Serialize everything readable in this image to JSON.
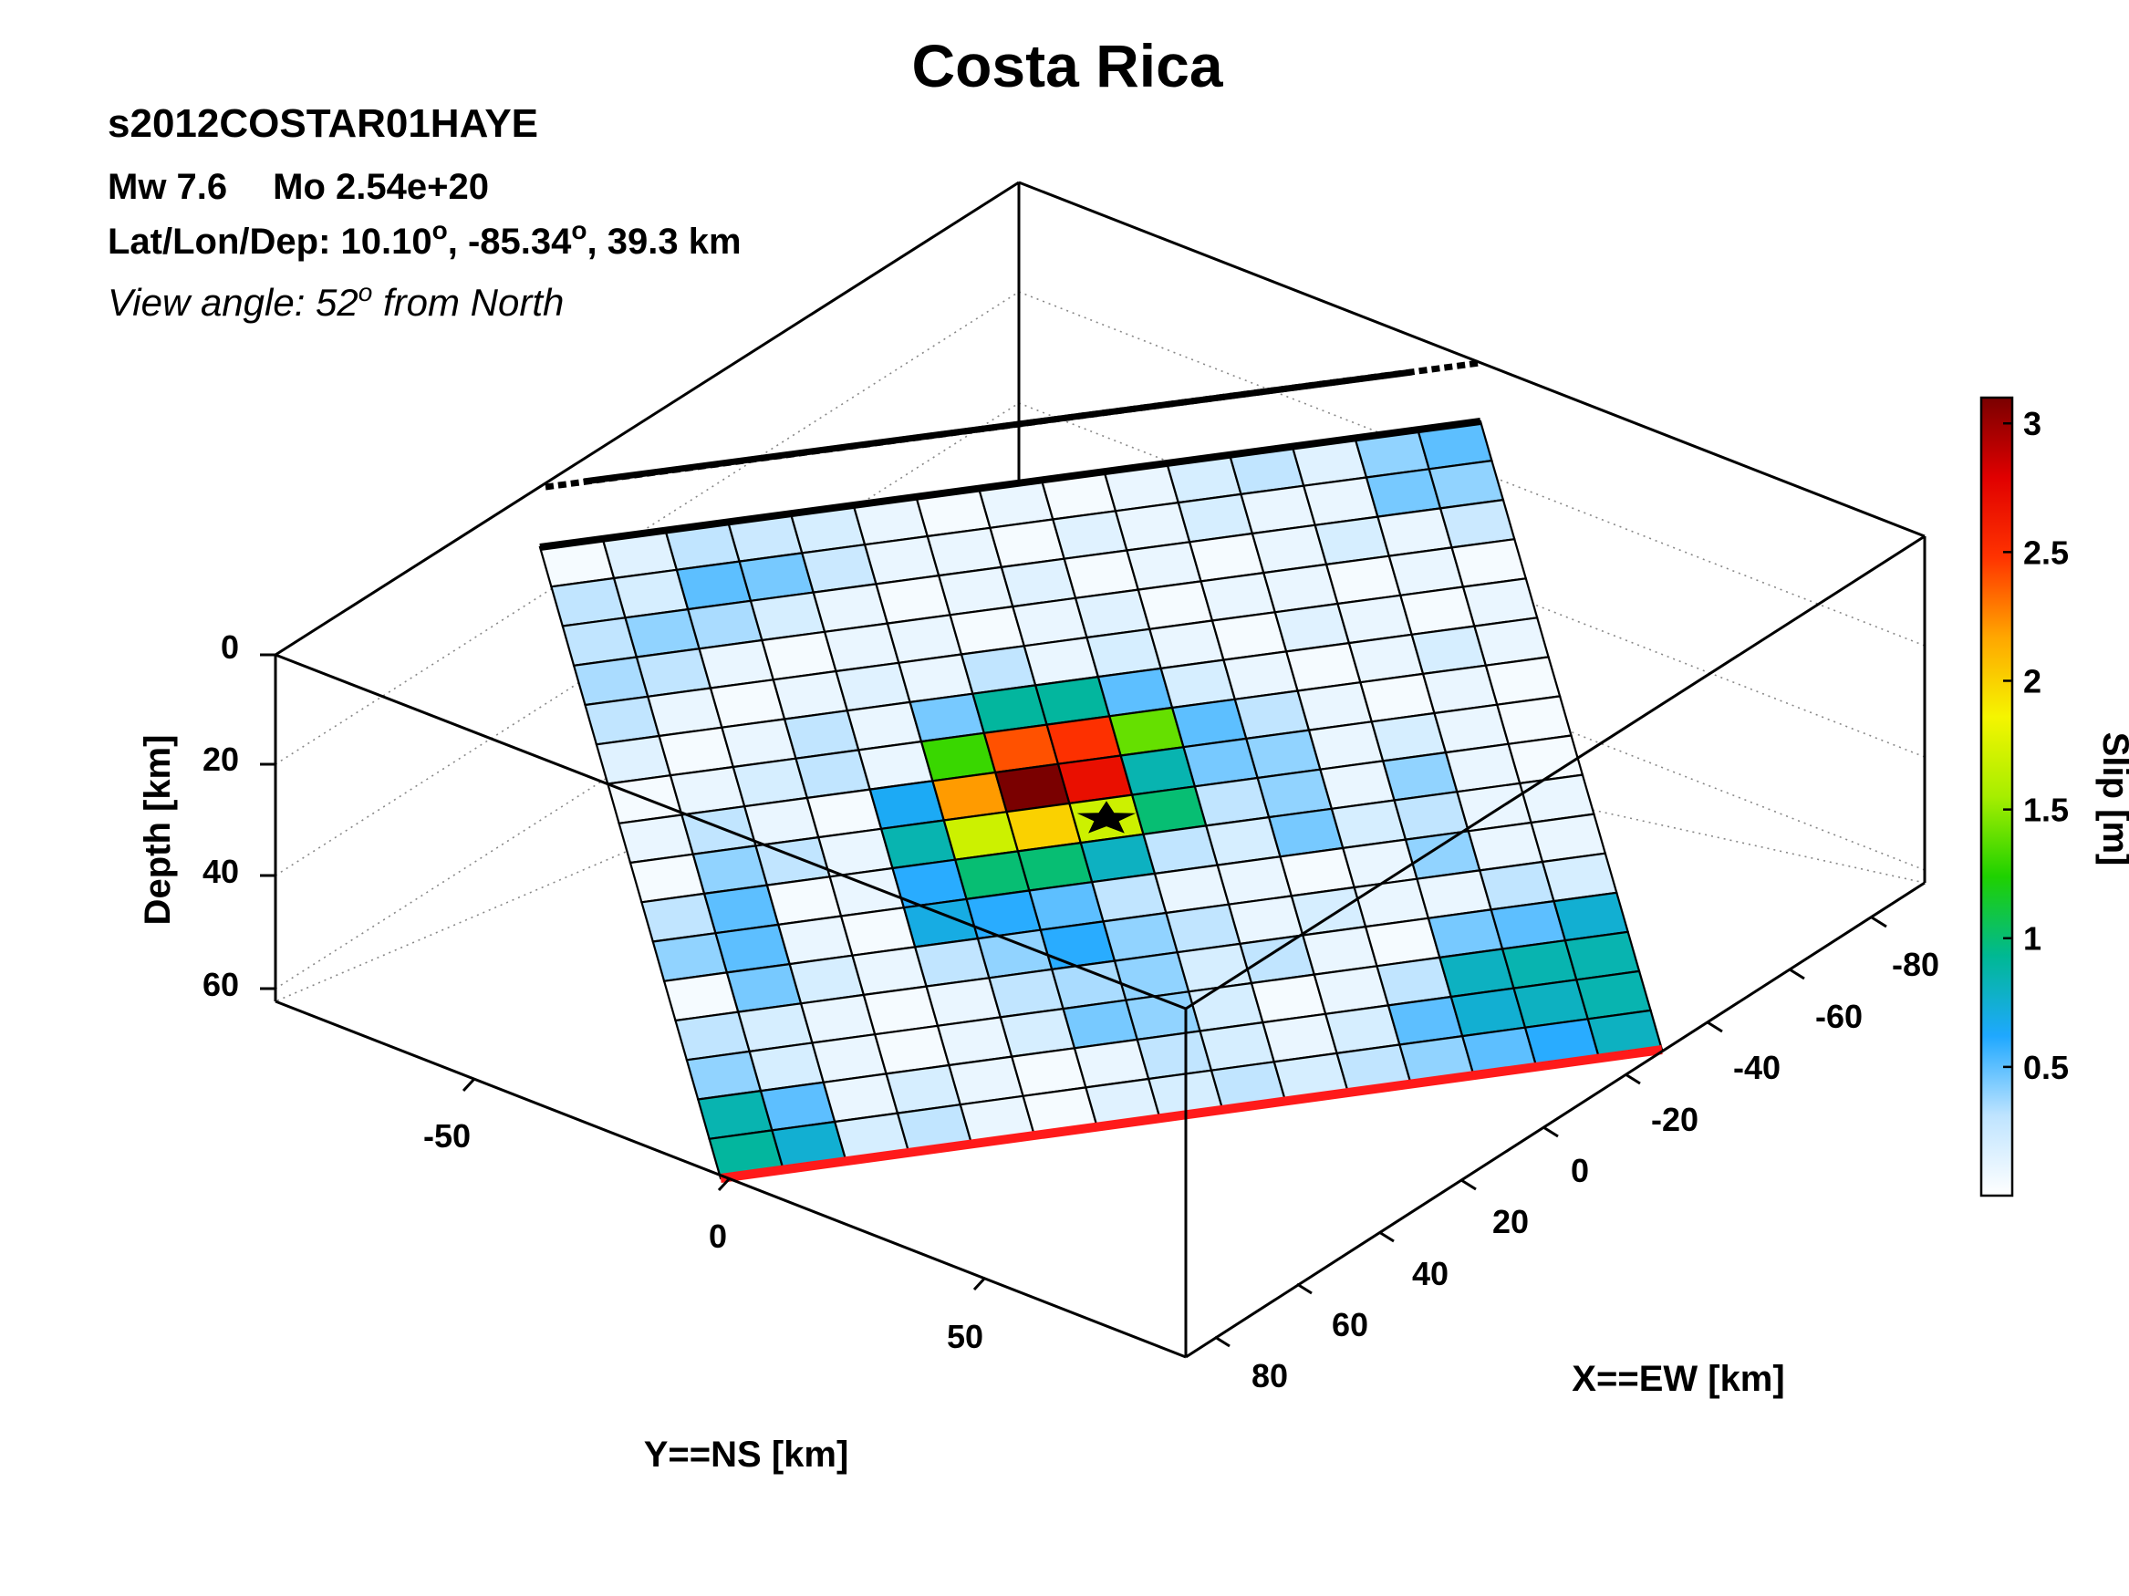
{
  "chart_data": {
    "type": "heatmap",
    "title": "Costa Rica",
    "event_id": "s2012COSTAR01HAYE",
    "magnitude_line": {
      "mw": "Mw 7.6",
      "mo": "Mo 2.54e+20"
    },
    "location_line": {
      "prefix": "Lat/Lon/Dep: 10.10",
      "lon": ", -85.34",
      "depth": ", 39.3 km",
      "degree_symbol": "o"
    },
    "view_line": {
      "prefix": "View angle:  52",
      "sup": "o",
      "suffix": " from North"
    },
    "zlabel": "Depth [km]",
    "ylabel": "Y==NS [km]",
    "xlabel": "X==EW [km]",
    "colorbar_label": "Slip [m]",
    "zticks": [
      0,
      20,
      40,
      60
    ],
    "yticks": [
      -50,
      0,
      50
    ],
    "xticks": [
      -80,
      -60,
      -40,
      -20,
      0,
      20,
      40,
      60,
      80
    ],
    "colorbar_ticks": [
      0.5,
      1,
      1.5,
      2,
      2.5,
      3
    ],
    "colorbar_range": [
      0,
      3.1
    ],
    "grid": true,
    "fault_grid": {
      "rows": 16,
      "cols": 15,
      "row_axis": "down-dip (row 0 = top edge, thick black line)",
      "col_axis": "along-strike (col 0 = left end)",
      "slip_m": [
        [
          0.05,
          0.15,
          0.3,
          0.25,
          0.2,
          0.1,
          0.05,
          0.1,
          0.05,
          0.1,
          0.2,
          0.3,
          0.15,
          0.4,
          0.5
        ],
        [
          0.3,
          0.2,
          0.5,
          0.45,
          0.25,
          0.1,
          0.1,
          0.05,
          0.15,
          0.1,
          0.2,
          0.1,
          0.1,
          0.45,
          0.4
        ],
        [
          0.3,
          0.4,
          0.35,
          0.2,
          0.1,
          0.05,
          0.1,
          0.15,
          0.05,
          0.1,
          0.05,
          0.1,
          0.2,
          0.1,
          0.25
        ],
        [
          0.35,
          0.3,
          0.1,
          0.05,
          0.1,
          0.1,
          0.05,
          0.1,
          0.15,
          0.05,
          0.1,
          0.1,
          0.05,
          0.1,
          0.05
        ],
        [
          0.3,
          0.1,
          0.05,
          0.1,
          0.15,
          0.1,
          0.3,
          0.1,
          0.2,
          0.1,
          0.05,
          0.15,
          0.1,
          0.05,
          0.1
        ],
        [
          0.15,
          0.05,
          0.1,
          0.3,
          0.1,
          0.45,
          0.9,
          0.9,
          0.5,
          0.2,
          0.1,
          0.05,
          0.1,
          0.2,
          0.1
        ],
        [
          0.05,
          0.1,
          0.2,
          0.3,
          0.1,
          1.3,
          2.4,
          2.5,
          1.4,
          0.5,
          0.3,
          0.1,
          0.05,
          0.1,
          0.05
        ],
        [
          0.1,
          0.3,
          0.1,
          0.05,
          0.65,
          2.2,
          3.1,
          2.7,
          0.85,
          0.45,
          0.4,
          0.1,
          0.2,
          0.1,
          0.05
        ],
        [
          0.05,
          0.4,
          0.3,
          0.1,
          0.85,
          1.7,
          2.0,
          1.7,
          1.0,
          0.3,
          0.4,
          0.1,
          0.4,
          0.1,
          0.05
        ],
        [
          0.3,
          0.5,
          0.05,
          0.1,
          0.6,
          1.0,
          1.0,
          0.8,
          0.3,
          0.2,
          0.45,
          0.2,
          0.3,
          0.1,
          0.1
        ],
        [
          0.4,
          0.5,
          0.1,
          0.05,
          0.7,
          0.6,
          0.5,
          0.3,
          0.1,
          0.1,
          0.05,
          0.1,
          0.4,
          0.1,
          0.1
        ],
        [
          0.05,
          0.45,
          0.2,
          0.1,
          0.3,
          0.4,
          0.6,
          0.4,
          0.3,
          0.1,
          0.2,
          0.1,
          0.1,
          0.3,
          0.2
        ],
        [
          0.3,
          0.2,
          0.1,
          0.05,
          0.1,
          0.3,
          0.35,
          0.4,
          0.2,
          0.3,
          0.1,
          0.05,
          0.45,
          0.5,
          0.75
        ],
        [
          0.4,
          0.2,
          0.1,
          0.05,
          0.1,
          0.2,
          0.45,
          0.4,
          0.2,
          0.05,
          0.1,
          0.3,
          0.8,
          0.85,
          0.85
        ],
        [
          0.85,
          0.5,
          0.1,
          0.2,
          0.1,
          0.05,
          0.1,
          0.3,
          0.2,
          0.1,
          0.2,
          0.5,
          0.75,
          0.8,
          0.85
        ],
        [
          0.9,
          0.75,
          0.2,
          0.3,
          0.1,
          0.05,
          0.15,
          0.2,
          0.3,
          0.2,
          0.3,
          0.4,
          0.5,
          0.6,
          0.8
        ]
      ]
    },
    "hypocenter_cell": {
      "row": 8,
      "col": 7
    },
    "colors": {
      "trench_line": "#ff1a1a",
      "top_edge": "#000000",
      "frame": "#000000",
      "colormap_stops": [
        "#ffffff",
        "#bfe4ff",
        "#1fa8ff",
        "#00b894",
        "#1fd100",
        "#a6ee00",
        "#f5f500",
        "#ffa600",
        "#ff3300",
        "#e00000",
        "#7a0000"
      ]
    }
  }
}
